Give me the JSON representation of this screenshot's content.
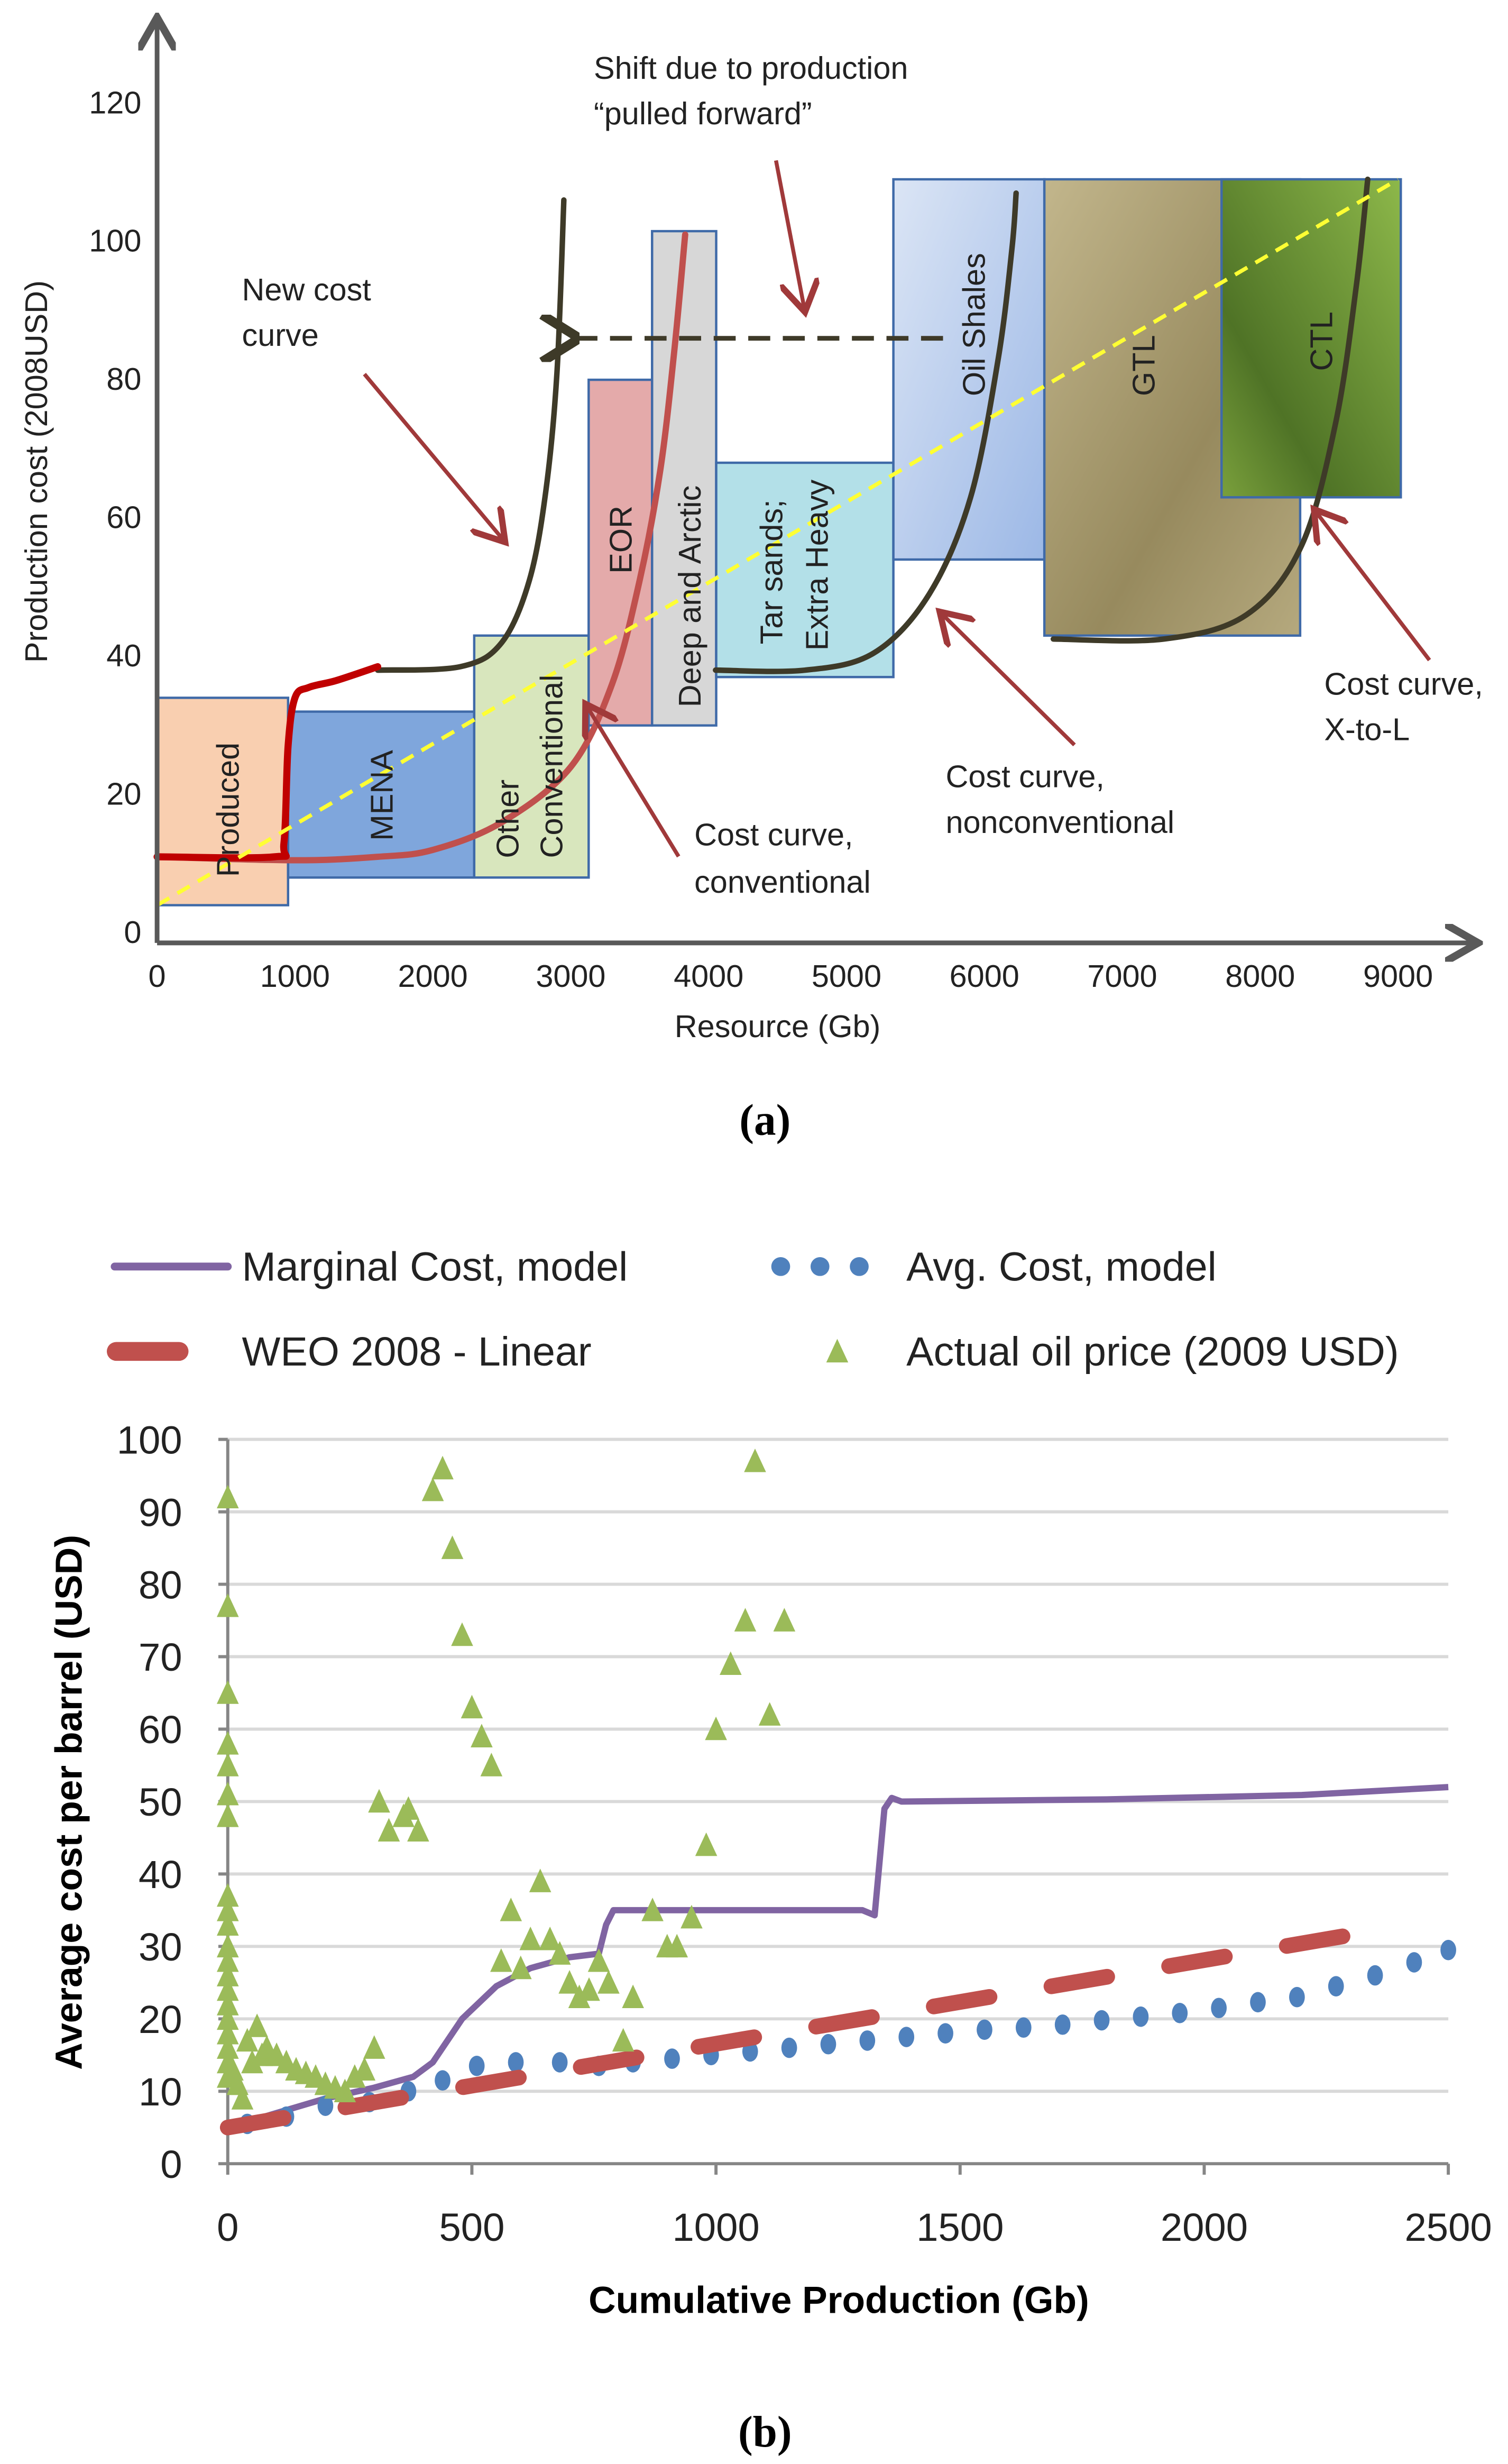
{
  "chart_data": [
    {
      "type": "area",
      "panel_label": "(a)",
      "xlabel": "Resource (Gb)",
      "ylabel": "Production cost (2008USD)",
      "xlim": [
        0,
        9500
      ],
      "ylim": [
        0,
        130
      ],
      "x_ticks": [
        "0",
        "1000",
        "2000",
        "3000",
        "4000",
        "5000",
        "6000",
        "7000",
        "8000",
        "9000"
      ],
      "y_ticks": [
        "0",
        "20",
        "40",
        "60",
        "80",
        "100",
        "120"
      ],
      "boxes": [
        {
          "label": "Produced",
          "x0": 0,
          "x1": 950,
          "y0": 5,
          "y1": 35,
          "color": "#f9cfb0"
        },
        {
          "label": "MENA",
          "x0": 950,
          "x1": 2300,
          "y0": 9,
          "y1": 33,
          "color": "#7fa6dc"
        },
        {
          "label": "Other Conventional",
          "x0": 2300,
          "x1": 3130,
          "y0": 9,
          "y1": 44,
          "color": "#d8e6bd"
        },
        {
          "label": "EOR",
          "x0": 3130,
          "x1": 3590,
          "y0": 31,
          "y1": 81,
          "color": "#e4aaaa"
        },
        {
          "label": "Deep and Arctic",
          "x0": 3590,
          "x1": 4055,
          "y0": 31,
          "y1": 102.5,
          "color": "#d7d7d7"
        },
        {
          "label": "Tar sands; Extra Heavy",
          "x0": 4055,
          "x1": 5340,
          "y0": 38,
          "y1": 69,
          "color": "#b3e0e8"
        },
        {
          "label": "Oil Shales",
          "x0": 5340,
          "x1": 6435,
          "y0": 55,
          "y1": 110,
          "color": "#b8cdee"
        },
        {
          "label": "GTL",
          "x0": 6435,
          "x1": 8290,
          "y0": 44,
          "y1": 110,
          "color": "#b2a67c"
        },
        {
          "label": "CTL",
          "x0": 7720,
          "x1": 9020,
          "y0": 64,
          "y1": 110,
          "color": "#7aa03c"
        }
      ],
      "curves": [
        {
          "name": "Cost curve, conventional",
          "color": "#c0504d",
          "points": [
            [
              0,
              12
            ],
            [
              1000,
              11.5
            ],
            [
              1600,
              12
            ],
            [
              2000,
              13
            ],
            [
              2500,
              17
            ],
            [
              3000,
              25
            ],
            [
              3300,
              37
            ],
            [
              3500,
              52
            ],
            [
              3650,
              68
            ],
            [
              3750,
              85
            ],
            [
              3830,
              102
            ]
          ]
        },
        {
          "name": "New cost curve",
          "color": "#3e3a28",
          "points": [
            [
              1600,
              39
            ],
            [
              2200,
              39.5
            ],
            [
              2500,
              43
            ],
            [
              2700,
              52
            ],
            [
              2820,
              65
            ],
            [
              2900,
              82
            ],
            [
              2950,
              107
            ]
          ]
        },
        {
          "name": "Produced actual",
          "color": "#c00000",
          "points": [
            [
              0,
              12
            ],
            [
              850,
              12
            ],
            [
              920,
              14
            ],
            [
              950,
              28
            ],
            [
              1000,
              35
            ],
            [
              1100,
              36.5
            ],
            [
              1300,
              37.5
            ],
            [
              1600,
              39.5
            ]
          ]
        },
        {
          "name": "Cost curve, nonconventional",
          "color": "#3e3a28",
          "points": [
            [
              4050,
              39
            ],
            [
              4700,
              39
            ],
            [
              5200,
              41.5
            ],
            [
              5600,
              50
            ],
            [
              5900,
              64
            ],
            [
              6100,
              84
            ],
            [
              6200,
              100
            ],
            [
              6230,
              108
            ]
          ]
        },
        {
          "name": "Cost curve, X-to-L",
          "color": "#3e3a28",
          "points": [
            [
              6500,
              43.5
            ],
            [
              7300,
              43.5
            ],
            [
              7900,
              47
            ],
            [
              8300,
              57
            ],
            [
              8550,
              75
            ],
            [
              8700,
              95
            ],
            [
              8780,
              110
            ]
          ]
        }
      ],
      "trend_line": {
        "color": "#ffff33",
        "points": [
          [
            0,
            5
          ],
          [
            9000,
            110
          ]
        ]
      },
      "shift_arrow": {
        "from": [
          5700,
          87
        ],
        "to": [
          2950,
          87
        ]
      },
      "annotations": {
        "shift": [
          "Shift due to production",
          "“pulled forward”"
        ],
        "new_cost": [
          "New cost",
          "curve"
        ],
        "conventional": [
          "Cost curve,",
          "conventional"
        ],
        "nonconventional": [
          "Cost curve,",
          "nonconventional"
        ],
        "xtol": [
          "Cost curve,",
          "X-to-L"
        ]
      },
      "box_labels": {
        "produced": "Produced",
        "mena": "MENA",
        "other1": "Other",
        "other2": "Conventional",
        "eor": "EOR",
        "deep": "Deep and Arctic",
        "tar1": "Tar sands;",
        "tar2": "Extra Heavy",
        "shales": "Oil Shales",
        "gtl": "GTL",
        "ctl": "CTL"
      }
    },
    {
      "type": "line",
      "panel_label": "(b)",
      "xlabel": "Cumulative Production (Gb)",
      "ylabel": "Average cost per barrel (USD)",
      "xlim": [
        0,
        2500
      ],
      "ylim": [
        0,
        100
      ],
      "grid": true,
      "legend": "top",
      "x_ticks": [
        "0",
        "500",
        "1000",
        "1500",
        "2000",
        "2500"
      ],
      "y_ticks": [
        "0",
        "10",
        "20",
        "30",
        "40",
        "50",
        "60",
        "70",
        "80",
        "90",
        "100"
      ],
      "series": [
        {
          "name": "Marginal Cost, model",
          "style": "line",
          "color": "#8064a2",
          "points": [
            [
              0,
              5
            ],
            [
              100,
              7
            ],
            [
              200,
              9
            ],
            [
              300,
              10.5
            ],
            [
              380,
              12
            ],
            [
              420,
              14
            ],
            [
              480,
              20
            ],
            [
              550,
              24.5
            ],
            [
              620,
              27
            ],
            [
              700,
              28.5
            ],
            [
              760,
              29
            ],
            [
              775,
              33
            ],
            [
              790,
              35
            ],
            [
              1000,
              35
            ],
            [
              1300,
              35
            ],
            [
              1325,
              34.3
            ],
            [
              1345,
              49
            ],
            [
              1360,
              50.5
            ],
            [
              1380,
              50
            ],
            [
              1800,
              50.3
            ],
            [
              2200,
              50.9
            ],
            [
              2500,
              52
            ]
          ]
        },
        {
          "name": "Avg. Cost, model",
          "style": "dots",
          "color": "#4f81bd",
          "points": [
            [
              40,
              5.5
            ],
            [
              120,
              6.5
            ],
            [
              200,
              8
            ],
            [
              290,
              8.5
            ],
            [
              370,
              10
            ],
            [
              440,
              11.5
            ],
            [
              510,
              13.5
            ],
            [
              590,
              14
            ],
            [
              680,
              14
            ],
            [
              760,
              13.5
            ],
            [
              830,
              14
            ],
            [
              910,
              14.5
            ],
            [
              990,
              15
            ],
            [
              1070,
              15.5
            ],
            [
              1150,
              16
            ],
            [
              1230,
              16.5
            ],
            [
              1310,
              17
            ],
            [
              1390,
              17.5
            ],
            [
              1470,
              18
            ],
            [
              1550,
              18.5
            ],
            [
              1630,
              18.8
            ],
            [
              1710,
              19.2
            ],
            [
              1790,
              19.8
            ],
            [
              1870,
              20.3
            ],
            [
              1950,
              20.8
            ],
            [
              2030,
              21.5
            ],
            [
              2110,
              22.3
            ],
            [
              2190,
              23
            ],
            [
              2270,
              24.5
            ],
            [
              2350,
              26
            ],
            [
              2430,
              27.8
            ],
            [
              2500,
              29.5
            ]
          ]
        },
        {
          "name": "WEO 2008 - Linear",
          "style": "dashed",
          "color": "#c0504d",
          "points": [
            [
              0,
              5
            ],
            [
              2380,
              32.5
            ]
          ]
        },
        {
          "name": "Actual oil price (2009 USD)",
          "style": "triangles",
          "color": "#9bbb59",
          "points": [
            [
              0,
              92
            ],
            [
              0,
              77
            ],
            [
              0,
              65
            ],
            [
              0,
              58
            ],
            [
              0,
              55
            ],
            [
              0,
              51
            ],
            [
              0,
              48
            ],
            [
              0,
              37
            ],
            [
              0,
              35
            ],
            [
              0,
              33
            ],
            [
              0,
              30
            ],
            [
              0,
              28
            ],
            [
              0,
              26
            ],
            [
              0,
              24
            ],
            [
              0,
              22
            ],
            [
              0,
              20
            ],
            [
              0,
              18
            ],
            [
              0,
              16
            ],
            [
              0,
              14
            ],
            [
              0,
              12
            ],
            [
              10,
              13
            ],
            [
              20,
              11
            ],
            [
              30,
              9
            ],
            [
              40,
              17
            ],
            [
              50,
              14
            ],
            [
              60,
              19
            ],
            [
              70,
              15
            ],
            [
              80,
              16
            ],
            [
              100,
              15
            ],
            [
              120,
              14
            ],
            [
              140,
              13
            ],
            [
              160,
              12.5
            ],
            [
              180,
              12
            ],
            [
              200,
              11
            ],
            [
              220,
              10.5
            ],
            [
              240,
              10
            ],
            [
              260,
              12
            ],
            [
              280,
              13
            ],
            [
              300,
              16
            ],
            [
              310,
              50
            ],
            [
              330,
              46
            ],
            [
              360,
              48
            ],
            [
              370,
              49
            ],
            [
              390,
              46
            ],
            [
              420,
              93
            ],
            [
              440,
              96
            ],
            [
              460,
              85
            ],
            [
              480,
              73
            ],
            [
              500,
              63
            ],
            [
              520,
              59
            ],
            [
              540,
              55
            ],
            [
              560,
              28
            ],
            [
              580,
              35
            ],
            [
              600,
              27
            ],
            [
              620,
              31
            ],
            [
              640,
              39
            ],
            [
              660,
              31
            ],
            [
              680,
              29
            ],
            [
              700,
              25
            ],
            [
              720,
              23
            ],
            [
              740,
              24
            ],
            [
              760,
              28
            ],
            [
              780,
              25
            ],
            [
              810,
              17
            ],
            [
              830,
              23
            ],
            [
              870,
              35
            ],
            [
              900,
              30
            ],
            [
              920,
              30
            ],
            [
              950,
              34
            ],
            [
              980,
              44
            ],
            [
              1000,
              60
            ],
            [
              1030,
              69
            ],
            [
              1060,
              75
            ],
            [
              1080,
              97
            ],
            [
              1110,
              62
            ],
            [
              1140,
              75
            ]
          ]
        }
      ]
    }
  ]
}
